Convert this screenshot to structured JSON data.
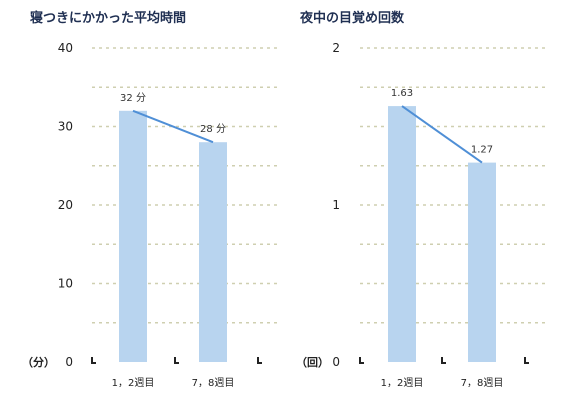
{
  "chart_data": [
    {
      "type": "bar",
      "title": "寝つきにかかった平均時間",
      "unit_label": "（分）",
      "categories": [
        "1，2週目",
        "7，8週目"
      ],
      "values": [
        32,
        28
      ],
      "data_labels": [
        "32 分",
        "28 分"
      ],
      "ylim": [
        0,
        40
      ],
      "yticks": [
        0,
        10,
        20,
        30,
        40
      ],
      "ytick_labels": [
        "0",
        "10",
        "20",
        "30",
        "40"
      ],
      "grid_step": 5,
      "grid": true,
      "trend_line": true,
      "colors": {
        "bar": "#b8d4ef",
        "line": "#4f8fd6",
        "grid": "#cfcfb0",
        "title": "#1f2f52"
      }
    },
    {
      "type": "bar",
      "title": "夜中の目覚め回数",
      "unit_label": "（回）",
      "categories": [
        "1，2週目",
        "7，8週目"
      ],
      "values": [
        1.63,
        1.27
      ],
      "data_labels": [
        "1.63",
        "1.27"
      ],
      "ylim": [
        0,
        2
      ],
      "yticks": [
        0,
        1,
        2
      ],
      "ytick_labels": [
        "0",
        "1",
        "2"
      ],
      "grid_step": 0.25,
      "grid": true,
      "trend_line": true,
      "colors": {
        "bar": "#b8d4ef",
        "line": "#4f8fd6",
        "grid": "#cfcfb0",
        "title": "#1f2f52"
      }
    }
  ]
}
